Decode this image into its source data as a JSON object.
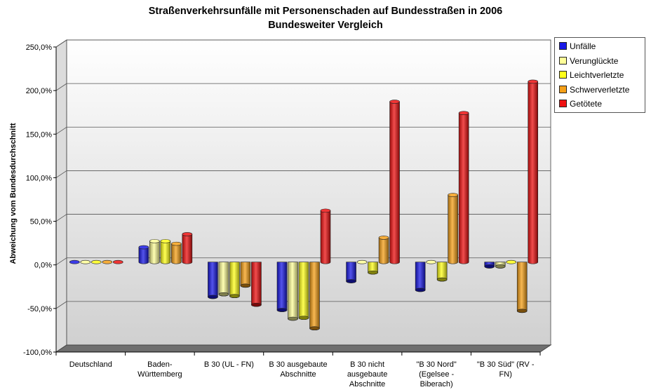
{
  "chart_data": {
    "type": "bar",
    "title": "Straßenverkehrsunfälle mit Personenschaden auf Bundesstraßen in 2006",
    "subtitle": "Bundesweiter Vergleich",
    "ylabel": "Abweichung vom Bundesdurchschnitt",
    "xlabel": "",
    "ylim": [
      -100,
      250
    ],
    "yticks": [
      "-100,0%",
      "-50,0%",
      "0,0%",
      "50,0%",
      "100,0%",
      "150,0%",
      "200,0%",
      "250,0%"
    ],
    "ytick_values": [
      -100,
      -50,
      0,
      50,
      100,
      150,
      200,
      250
    ],
    "grid": true,
    "legend": "right",
    "categories": [
      [
        "Deutschland"
      ],
      [
        "Baden-",
        "Württemberg"
      ],
      [
        "B 30 (UL - FN)"
      ],
      [
        "B 30 ausgebaute",
        "Abschnitte"
      ],
      [
        "B 30 nicht",
        "ausgebaute",
        "Abschnitte"
      ],
      [
        "\"B 30 Nord\"",
        "(Egelsee -",
        "Biberach)"
      ],
      [
        "\"B 30 Süd\" (RV -",
        "FN)"
      ]
    ],
    "series": [
      {
        "name": "Unfälle",
        "color": "#1a1ae6",
        "values": [
          0,
          17,
          -40,
          -55,
          -22,
          -32,
          -5
        ]
      },
      {
        "name": "Verunglückte",
        "color": "#ffff99",
        "values": [
          0,
          24,
          -37,
          -65,
          0,
          0,
          -5
        ]
      },
      {
        "name": "Leichtverletzte",
        "color": "#ffff1a",
        "values": [
          0,
          24,
          -39,
          -64,
          -12,
          -20,
          0
        ]
      },
      {
        "name": "Schwerverletzte",
        "color": "#f5a018",
        "values": [
          0,
          21,
          -27,
          -76,
          28,
          77,
          -56
        ]
      },
      {
        "name": "Getötete",
        "color": "#ee1111",
        "values": [
          0,
          32,
          -49,
          59,
          184,
          171,
          207
        ]
      }
    ]
  }
}
